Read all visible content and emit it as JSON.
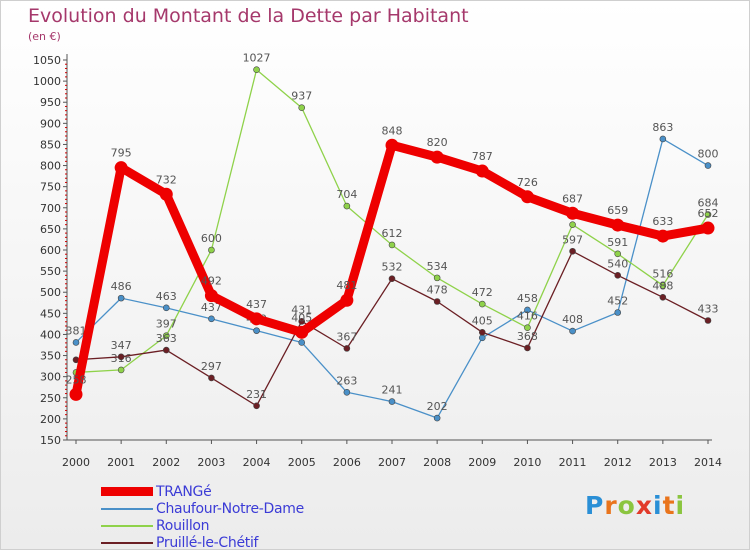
{
  "title": "Evolution du Montant de la Dette par Habitant",
  "unit_label": "(en €)",
  "brand": {
    "text": "Proxiti",
    "letters": [
      {
        "ch": "P",
        "color": "#2a8fd6"
      },
      {
        "ch": "r",
        "color": "#e9741c"
      },
      {
        "ch": "o",
        "color": "#8bc53f"
      },
      {
        "ch": "x",
        "color": "#e23a2a"
      },
      {
        "ch": "i",
        "color": "#2a8fd6"
      },
      {
        "ch": "t",
        "color": "#e9741c"
      },
      {
        "ch": "i",
        "color": "#8bc53f"
      }
    ]
  },
  "chart_data": {
    "type": "line",
    "title": "Evolution du Montant de la Dette par Habitant",
    "ylabel": "(en €)",
    "x": [
      2000,
      2001,
      2002,
      2003,
      2004,
      2005,
      2006,
      2007,
      2008,
      2009,
      2010,
      2011,
      2012,
      2013,
      2014
    ],
    "ylim": [
      150,
      1050
    ],
    "yticks": [
      150,
      200,
      250,
      300,
      350,
      400,
      450,
      500,
      550,
      600,
      650,
      700,
      750,
      800,
      850,
      900,
      950,
      1000,
      1050
    ],
    "grid": false,
    "legend_position": "bottom-left",
    "series": [
      {
        "name": "Chaufour-Notre-Dame",
        "color": "#4a90c8",
        "bold": false,
        "values": [
          381,
          486,
          463,
          437,
          409,
          381,
          263,
          241,
          202,
          392,
          458,
          408,
          452,
          863,
          800
        ],
        "labels": [
          "381",
          "486",
          "463",
          "437",
          "409",
          "",
          "263",
          "241",
          "202",
          "",
          "458",
          "408",
          "452",
          "863",
          "800"
        ]
      },
      {
        "name": "Rouillon",
        "color": "#8fd24a",
        "bold": false,
        "values": [
          310,
          316,
          397,
          600,
          1027,
          937,
          704,
          612,
          534,
          472,
          416,
          660,
          591,
          516,
          684
        ],
        "labels": [
          "",
          "316",
          "397",
          "600",
          "1027",
          "937",
          "704",
          "612",
          "534",
          "472",
          "416",
          "",
          "591",
          "516",
          "684"
        ]
      },
      {
        "name": "Pruillé-le-Chétif",
        "color": "#6b1f24",
        "bold": false,
        "values": [
          340,
          347,
          363,
          297,
          231,
          431,
          367,
          532,
          478,
          405,
          368,
          597,
          540,
          488,
          433
        ],
        "labels": [
          "",
          "347",
          "363",
          "297",
          "231",
          "431",
          "367",
          "532",
          "478",
          "405",
          "368",
          "597",
          "540",
          "488",
          "433"
        ]
      },
      {
        "name": "TRANGé",
        "color": "#ee0000",
        "bold": true,
        "values": [
          258,
          795,
          732,
          492,
          437,
          405,
          481,
          848,
          820,
          787,
          726,
          687,
          659,
          633,
          652
        ],
        "labels": [
          "258",
          "795",
          "732",
          "492",
          "437",
          "405",
          "481",
          "848",
          "820",
          "787",
          "726",
          "687",
          "659",
          "633",
          "652"
        ]
      }
    ],
    "legend_order": [
      "TRANGé",
      "Chaufour-Notre-Dame",
      "Rouillon",
      "Pruillé-le-Chétif"
    ]
  }
}
